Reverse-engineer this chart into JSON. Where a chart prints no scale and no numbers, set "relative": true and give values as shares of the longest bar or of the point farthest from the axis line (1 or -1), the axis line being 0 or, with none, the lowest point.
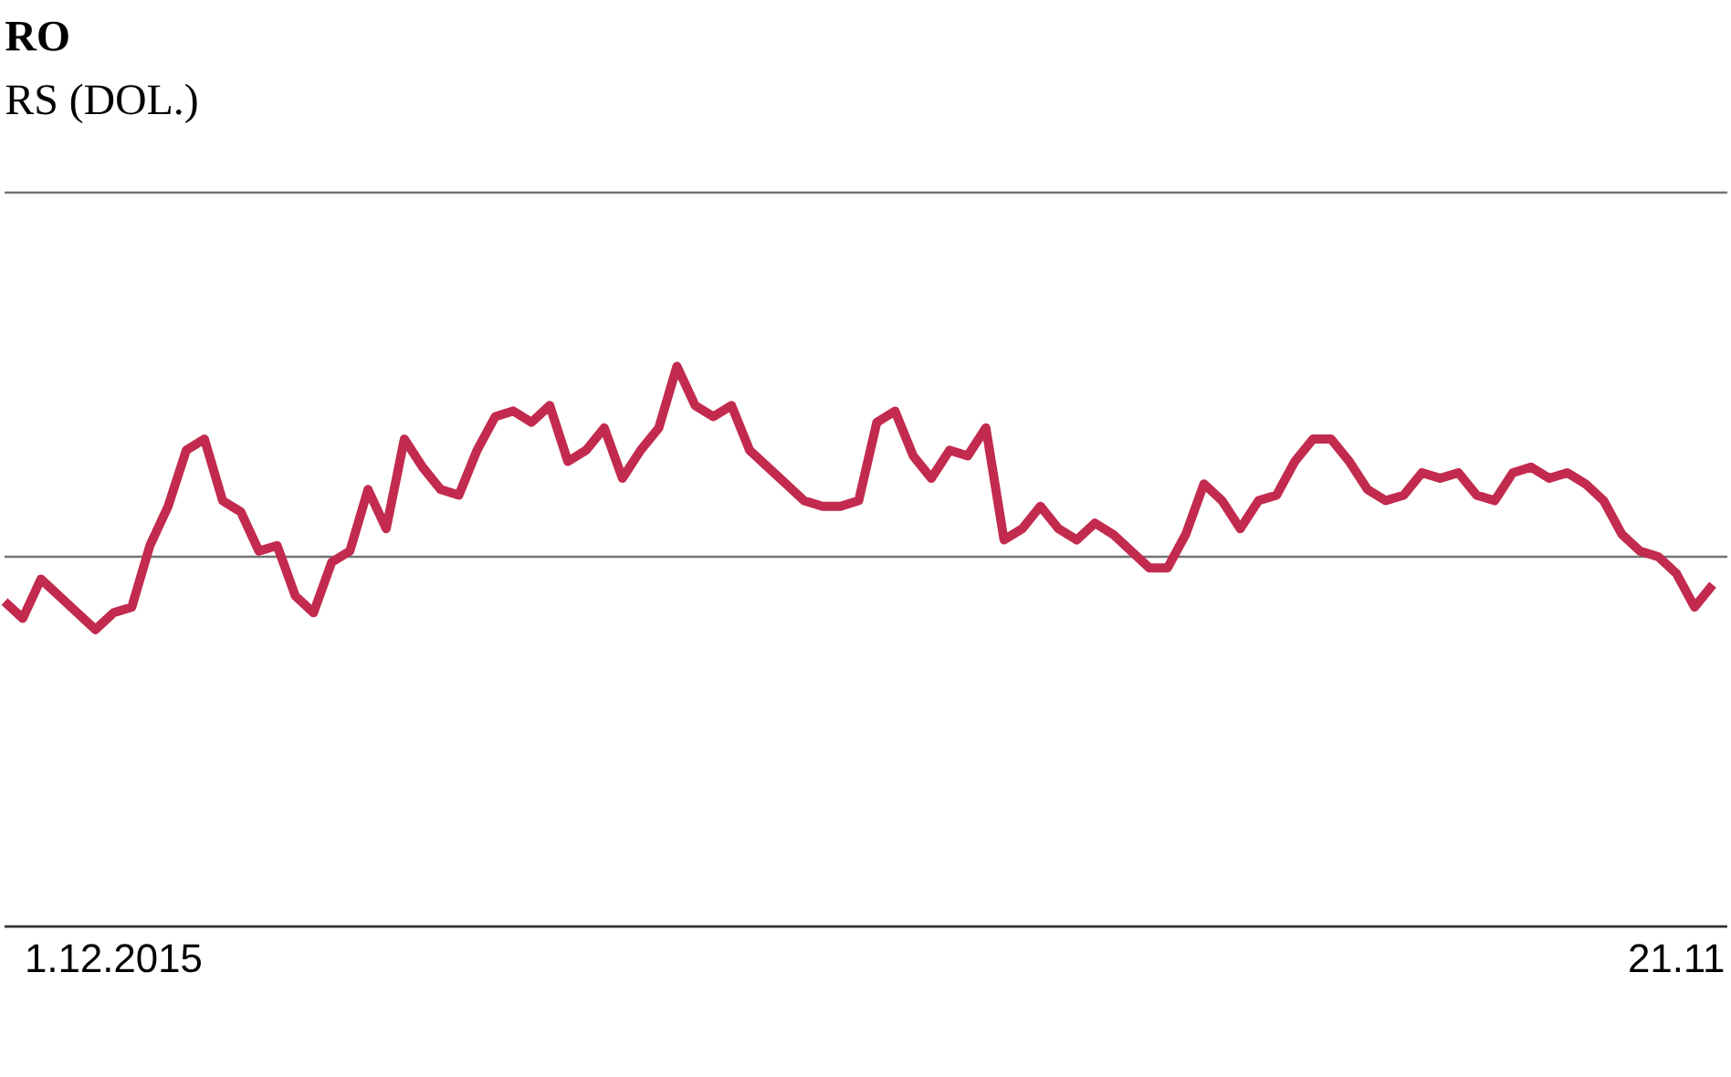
{
  "chart_data": {
    "type": "line",
    "title": "RO",
    "subtitle": "RS (DOL.)",
    "categories": [
      null,
      null,
      null,
      null,
      null,
      null,
      "1.12.2015",
      null,
      null,
      null,
      null,
      null,
      null,
      null,
      null,
      null,
      null,
      null,
      null,
      null,
      null,
      null,
      null,
      null,
      null,
      null,
      null,
      null,
      null,
      null,
      null,
      null,
      null,
      null,
      null,
      null,
      null,
      null,
      null,
      null,
      null,
      null,
      null,
      null,
      null,
      null,
      null,
      null,
      null,
      null,
      null,
      null,
      null,
      null,
      null,
      null,
      null,
      null,
      null,
      null,
      null,
      null,
      null,
      null,
      null,
      null,
      null,
      null,
      null,
      null,
      null,
      null,
      null,
      null,
      null,
      null,
      null,
      null,
      null,
      null,
      null,
      null,
      null,
      null,
      null,
      null,
      null,
      null,
      null,
      null,
      null,
      null,
      "21.11",
      null,
      null
    ],
    "values": [
      0.58,
      0.55,
      0.62,
      0.59,
      0.56,
      0.53,
      0.56,
      0.57,
      0.68,
      0.75,
      0.85,
      0.87,
      0.76,
      0.74,
      0.67,
      0.68,
      0.59,
      0.56,
      0.65,
      0.67,
      0.78,
      0.71,
      0.87,
      0.82,
      0.78,
      0.77,
      0.85,
      0.91,
      0.92,
      0.9,
      0.93,
      0.83,
      0.85,
      0.89,
      0.8,
      0.85,
      0.89,
      1.0,
      0.93,
      0.91,
      0.93,
      0.85,
      0.82,
      0.79,
      0.76,
      0.75,
      0.75,
      0.76,
      0.9,
      0.92,
      0.84,
      0.8,
      0.85,
      0.84,
      0.89,
      0.69,
      0.71,
      0.75,
      0.71,
      0.69,
      0.72,
      0.7,
      0.67,
      0.64,
      0.64,
      0.7,
      0.79,
      0.76,
      0.71,
      0.76,
      0.77,
      0.83,
      0.87,
      0.87,
      0.83,
      0.78,
      0.76,
      0.77,
      0.81,
      0.8,
      0.81,
      0.77,
      0.76,
      0.81,
      0.82,
      0.8,
      0.81,
      0.79,
      0.76,
      0.7,
      0.67,
      0.66,
      0.63,
      0.57,
      0.61
    ],
    "color": "#c22b4e",
    "relative": true,
    "ref_lines": [
      {
        "axis": "y",
        "value": 0.66,
        "color": "#737373"
      },
      {
        "axis": "y",
        "value": 1.31,
        "color": "#737373"
      }
    ]
  }
}
